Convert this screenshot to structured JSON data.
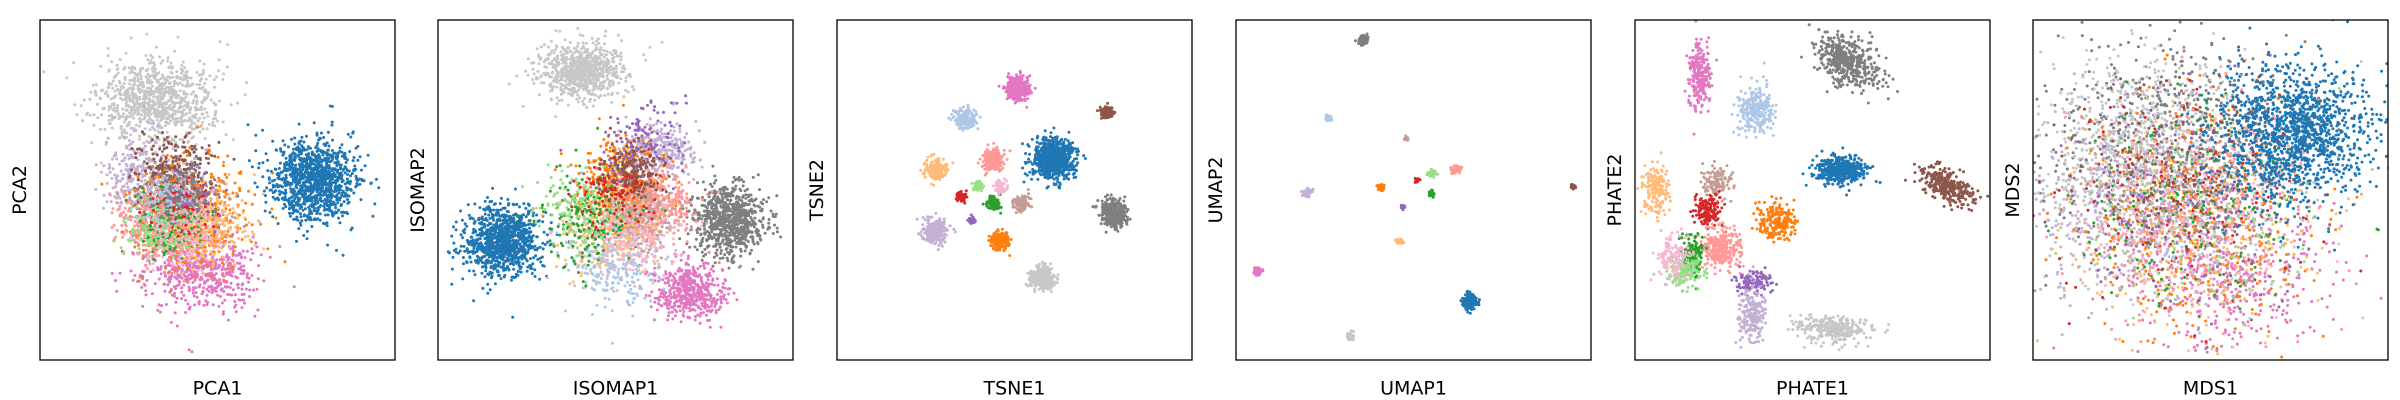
{
  "palette": {
    "blue": "#1f77b4",
    "light_blue": "#aec7e8",
    "orange": "#ff7f0e",
    "light_orange": "#ffbb78",
    "green": "#2ca02c",
    "light_green": "#98df8a",
    "red": "#d62728",
    "pink": "#ff9896",
    "purple": "#9467bd",
    "lavender": "#c5b0d5",
    "brown": "#8c564b",
    "tan": "#c49c94",
    "magenta": "#e377c2",
    "light_magenta": "#f7b6d2",
    "gray": "#7f7f7f",
    "light_gray": "#c7c7c7"
  },
  "chart_data": [
    {
      "type": "scatter",
      "xlabel": "PCA1",
      "ylabel": "PCA2",
      "xlim": [
        0,
        100
      ],
      "ylim": [
        0,
        100
      ],
      "ticks": "none",
      "grid": false,
      "legend": "none",
      "clusters": [
        {
          "color": "light_gray",
          "x": 33,
          "y": 76,
          "sx": 8,
          "sy": 6,
          "n": 900
        },
        {
          "color": "lavender",
          "x": 28,
          "y": 55,
          "sx": 5,
          "sy": 7,
          "n": 300
        },
        {
          "color": "magenta",
          "x": 45,
          "y": 27,
          "sx": 8,
          "sy": 6,
          "n": 600
        },
        {
          "color": "brown",
          "x": 38,
          "y": 53,
          "sx": 5,
          "sy": 6,
          "n": 400
        },
        {
          "color": "orange",
          "x": 42,
          "y": 42,
          "sx": 8,
          "sy": 7,
          "n": 600
        },
        {
          "color": "tan",
          "x": 38,
          "y": 44,
          "sx": 6,
          "sy": 5,
          "n": 300
        },
        {
          "color": "pink",
          "x": 34,
          "y": 40,
          "sx": 6,
          "sy": 6,
          "n": 300
        },
        {
          "color": "light_orange",
          "x": 46,
          "y": 40,
          "sx": 6,
          "sy": 6,
          "n": 300
        },
        {
          "color": "green",
          "x": 37,
          "y": 40,
          "sx": 5,
          "sy": 5,
          "n": 150
        },
        {
          "color": "light_green",
          "x": 33,
          "y": 38,
          "sx": 5,
          "sy": 4,
          "n": 120
        },
        {
          "color": "red",
          "x": 40,
          "y": 46,
          "sx": 4,
          "sy": 4,
          "n": 100
        },
        {
          "color": "purple",
          "x": 43,
          "y": 48,
          "sx": 4,
          "sy": 4,
          "n": 80
        },
        {
          "color": "light_blue",
          "x": 36,
          "y": 48,
          "sx": 5,
          "sy": 4,
          "n": 120
        },
        {
          "color": "light_magenta",
          "x": 40,
          "y": 36,
          "sx": 5,
          "sy": 5,
          "n": 120
        },
        {
          "color": "gray",
          "x": 40,
          "y": 50,
          "sx": 6,
          "sy": 5,
          "n": 100
        },
        {
          "color": "blue",
          "x": 77,
          "y": 53,
          "sx": 6,
          "sy": 6,
          "n": 1100
        }
      ]
    },
    {
      "type": "scatter",
      "xlabel": "ISOMAP1",
      "ylabel": "ISOMAP2",
      "xlim": [
        0,
        100
      ],
      "ylim": [
        0,
        100
      ],
      "ticks": "none",
      "grid": false,
      "legend": "none",
      "clusters": [
        {
          "color": "light_gray",
          "x": 40,
          "y": 85,
          "sx": 6,
          "sy": 4,
          "n": 800
        },
        {
          "color": "blue",
          "x": 18,
          "y": 35,
          "sx": 5,
          "sy": 5,
          "n": 1000
        },
        {
          "color": "gray",
          "x": 82,
          "y": 41,
          "sx": 5,
          "sy": 5,
          "n": 800
        },
        {
          "color": "magenta",
          "x": 71,
          "y": 20,
          "sx": 5,
          "sy": 4,
          "n": 500
        },
        {
          "color": "lavender",
          "x": 62,
          "y": 62,
          "sx": 5,
          "sy": 4,
          "n": 300
        },
        {
          "color": "orange",
          "x": 52,
          "y": 52,
          "sx": 6,
          "sy": 6,
          "n": 500
        },
        {
          "color": "pink",
          "x": 60,
          "y": 45,
          "sx": 6,
          "sy": 5,
          "n": 400
        },
        {
          "color": "tan",
          "x": 56,
          "y": 42,
          "sx": 5,
          "sy": 5,
          "n": 300
        },
        {
          "color": "light_orange",
          "x": 48,
          "y": 38,
          "sx": 7,
          "sy": 7,
          "n": 300
        },
        {
          "color": "light_blue",
          "x": 50,
          "y": 28,
          "sx": 7,
          "sy": 6,
          "n": 250
        },
        {
          "color": "green",
          "x": 42,
          "y": 42,
          "sx": 7,
          "sy": 7,
          "n": 200
        },
        {
          "color": "light_green",
          "x": 40,
          "y": 45,
          "sx": 6,
          "sy": 6,
          "n": 150
        },
        {
          "color": "brown",
          "x": 55,
          "y": 55,
          "sx": 4,
          "sy": 4,
          "n": 200
        },
        {
          "color": "purple",
          "x": 58,
          "y": 65,
          "sx": 6,
          "sy": 6,
          "n": 120
        },
        {
          "color": "red",
          "x": 50,
          "y": 48,
          "sx": 5,
          "sy": 5,
          "n": 100
        },
        {
          "color": "light_magenta",
          "x": 56,
          "y": 35,
          "sx": 6,
          "sy": 5,
          "n": 150
        }
      ]
    },
    {
      "type": "scatter",
      "xlabel": "TSNE1",
      "ylabel": "TSNE2",
      "xlim": [
        0,
        100
      ],
      "ylim": [
        0,
        100
      ],
      "ticks": "none",
      "grid": false,
      "legend": "none",
      "clusters": [
        {
          "color": "magenta",
          "x": 51,
          "y": 80,
          "sx": 1.7,
          "sy": 1.8,
          "n": 320
        },
        {
          "color": "light_blue",
          "x": 36,
          "y": 71,
          "sx": 1.5,
          "sy": 1.5,
          "n": 180
        },
        {
          "color": "brown",
          "x": 76,
          "y": 73,
          "sx": 0.9,
          "sy": 0.9,
          "n": 120
        },
        {
          "color": "blue",
          "x": 61,
          "y": 59,
          "sx": 3,
          "sy": 3,
          "n": 800
        },
        {
          "color": "pink",
          "x": 44,
          "y": 59,
          "sx": 1.6,
          "sy": 1.6,
          "n": 220
        },
        {
          "color": "light_orange",
          "x": 28,
          "y": 56,
          "sx": 1.6,
          "sy": 1.6,
          "n": 200
        },
        {
          "color": "lavender",
          "x": 28,
          "y": 38,
          "sx": 1.8,
          "sy": 1.8,
          "n": 250
        },
        {
          "color": "gray",
          "x": 78,
          "y": 43,
          "sx": 2,
          "sy": 2,
          "n": 350
        },
        {
          "color": "tan",
          "x": 52,
          "y": 46,
          "sx": 1.1,
          "sy": 1.1,
          "n": 120
        },
        {
          "color": "green",
          "x": 44,
          "y": 46,
          "sx": 1,
          "sy": 1,
          "n": 100
        },
        {
          "color": "light_green",
          "x": 40,
          "y": 51,
          "sx": 0.7,
          "sy": 0.7,
          "n": 60
        },
        {
          "color": "red",
          "x": 35,
          "y": 48,
          "sx": 0.7,
          "sy": 0.7,
          "n": 60
        },
        {
          "color": "light_magenta",
          "x": 46,
          "y": 51,
          "sx": 0.9,
          "sy": 0.9,
          "n": 80
        },
        {
          "color": "purple",
          "x": 38,
          "y": 41,
          "sx": 0.5,
          "sy": 0.5,
          "n": 40
        },
        {
          "color": "orange",
          "x": 46,
          "y": 35,
          "sx": 1.3,
          "sy": 1.3,
          "n": 150
        },
        {
          "color": "light_gray",
          "x": 58,
          "y": 24,
          "sx": 1.7,
          "sy": 1.7,
          "n": 260
        }
      ]
    },
    {
      "type": "scatter",
      "xlabel": "UMAP1",
      "ylabel": "UMAP2",
      "xlim": [
        0,
        100
      ],
      "ylim": [
        0,
        100
      ],
      "ticks": "none",
      "grid": false,
      "legend": "none",
      "clusters": [
        {
          "color": "gray",
          "x": 36,
          "y": 94,
          "sx": 0.7,
          "sy": 0.7,
          "n": 100
        },
        {
          "color": "light_blue",
          "x": 26,
          "y": 71,
          "sx": 0.45,
          "sy": 0.45,
          "n": 40
        },
        {
          "color": "tan",
          "x": 48,
          "y": 65,
          "sx": 0.3,
          "sy": 0.3,
          "n": 20
        },
        {
          "color": "pink",
          "x": 62,
          "y": 56,
          "sx": 0.6,
          "sy": 0.6,
          "n": 50
        },
        {
          "color": "light_green",
          "x": 55,
          "y": 55,
          "sx": 0.55,
          "sy": 0.45,
          "n": 40
        },
        {
          "color": "red",
          "x": 51,
          "y": 53,
          "sx": 0.3,
          "sy": 0.3,
          "n": 20
        },
        {
          "color": "green",
          "x": 55,
          "y": 49,
          "sx": 0.45,
          "sy": 0.45,
          "n": 30
        },
        {
          "color": "orange",
          "x": 41,
          "y": 51,
          "sx": 0.5,
          "sy": 0.5,
          "n": 30
        },
        {
          "color": "purple",
          "x": 47,
          "y": 45,
          "sx": 0.3,
          "sy": 0.3,
          "n": 15
        },
        {
          "color": "lavender",
          "x": 20,
          "y": 49,
          "sx": 0.65,
          "sy": 0.65,
          "n": 50
        },
        {
          "color": "light_orange",
          "x": 46,
          "y": 35,
          "sx": 0.5,
          "sy": 0.5,
          "n": 40
        },
        {
          "color": "brown",
          "x": 95,
          "y": 51,
          "sx": 0.35,
          "sy": 0.35,
          "n": 20
        },
        {
          "color": "magenta",
          "x": 6,
          "y": 26,
          "sx": 0.6,
          "sy": 0.6,
          "n": 60
        },
        {
          "color": "blue",
          "x": 66,
          "y": 17,
          "sx": 1,
          "sy": 1,
          "n": 260
        },
        {
          "color": "light_gray",
          "x": 32,
          "y": 7,
          "sx": 0.6,
          "sy": 0.6,
          "n": 50
        }
      ]
    },
    {
      "type": "scatter",
      "xlabel": "PHATE1",
      "ylabel": "PHATE2",
      "xlim": [
        0,
        100
      ],
      "ylim": [
        0,
        100
      ],
      "ticks": "none",
      "grid": false,
      "legend": "none",
      "clusters": [
        {
          "color": "magenta",
          "x": 18,
          "y": 84,
          "sx": 1.6,
          "sy": 5,
          "n": 250
        },
        {
          "color": "gray",
          "x": 60,
          "y": 88,
          "sx": 5,
          "sy": 3.5,
          "rot": -35,
          "n": 450
        },
        {
          "color": "light_blue",
          "x": 34,
          "y": 74,
          "sx": 2.5,
          "sy": 3.5,
          "n": 250
        },
        {
          "color": "blue",
          "x": 58,
          "y": 56,
          "sx": 3.5,
          "sy": 2,
          "n": 450
        },
        {
          "color": "brown",
          "x": 88,
          "y": 51,
          "sx": 4.5,
          "sy": 2,
          "rot": -30,
          "n": 300
        },
        {
          "color": "light_orange",
          "x": 6,
          "y": 50,
          "sx": 2,
          "sy": 3.5,
          "n": 180
        },
        {
          "color": "tan",
          "x": 23,
          "y": 52,
          "sx": 2,
          "sy": 2.5,
          "n": 120
        },
        {
          "color": "red",
          "x": 20,
          "y": 44,
          "sx": 2,
          "sy": 2.5,
          "n": 150
        },
        {
          "color": "orange",
          "x": 40,
          "y": 41,
          "sx": 2.5,
          "sy": 2.5,
          "n": 220
        },
        {
          "color": "pink",
          "x": 24,
          "y": 33,
          "sx": 3,
          "sy": 3,
          "n": 300
        },
        {
          "color": "green",
          "x": 16,
          "y": 31,
          "sx": 1.5,
          "sy": 3,
          "n": 150
        },
        {
          "color": "light_green",
          "x": 14,
          "y": 26,
          "sx": 2.5,
          "sy": 2.5,
          "n": 150
        },
        {
          "color": "light_magenta",
          "x": 11,
          "y": 30,
          "sx": 2.5,
          "sy": 3.5,
          "n": 130
        },
        {
          "color": "purple",
          "x": 33,
          "y": 23,
          "sx": 2.5,
          "sy": 2,
          "n": 120
        },
        {
          "color": "lavender",
          "x": 33,
          "y": 13,
          "sx": 2,
          "sy": 4,
          "n": 200
        },
        {
          "color": "light_gray",
          "x": 56,
          "y": 9,
          "sx": 5,
          "sy": 2,
          "n": 300
        }
      ]
    },
    {
      "type": "scatter",
      "xlabel": "MDS1",
      "ylabel": "MDS2",
      "xlim": [
        0,
        100
      ],
      "ylim": [
        0,
        100
      ],
      "ticks": "none",
      "grid": false,
      "legend": "none",
      "clusters": [
        {
          "color": "gray",
          "x": 38,
          "y": 65,
          "sx": 17,
          "sy": 16,
          "n": 700
        },
        {
          "color": "light_gray",
          "x": 30,
          "y": 60,
          "sx": 15,
          "sy": 16,
          "n": 700
        },
        {
          "color": "lavender",
          "x": 25,
          "y": 45,
          "sx": 15,
          "sy": 15,
          "n": 500
        },
        {
          "color": "magenta",
          "x": 55,
          "y": 25,
          "sx": 14,
          "sy": 11,
          "n": 400
        },
        {
          "color": "orange",
          "x": 45,
          "y": 40,
          "sx": 17,
          "sy": 17,
          "n": 400
        },
        {
          "color": "pink",
          "x": 50,
          "y": 45,
          "sx": 17,
          "sy": 16,
          "n": 300
        },
        {
          "color": "light_orange",
          "x": 45,
          "y": 35,
          "sx": 17,
          "sy": 16,
          "n": 300
        },
        {
          "color": "green",
          "x": 45,
          "y": 45,
          "sx": 17,
          "sy": 16,
          "n": 200
        },
        {
          "color": "light_green",
          "x": 45,
          "y": 45,
          "sx": 17,
          "sy": 16,
          "n": 150
        },
        {
          "color": "red",
          "x": 45,
          "y": 50,
          "sx": 17,
          "sy": 16,
          "n": 150
        },
        {
          "color": "brown",
          "x": 40,
          "y": 55,
          "sx": 16,
          "sy": 15,
          "n": 200
        },
        {
          "color": "tan",
          "x": 45,
          "y": 45,
          "sx": 17,
          "sy": 16,
          "n": 150
        },
        {
          "color": "light_blue",
          "x": 45,
          "y": 50,
          "sx": 17,
          "sy": 16,
          "n": 150
        },
        {
          "color": "purple",
          "x": 45,
          "y": 45,
          "sx": 17,
          "sy": 16,
          "n": 150
        },
        {
          "color": "light_magenta",
          "x": 45,
          "y": 40,
          "sx": 17,
          "sy": 16,
          "n": 150
        },
        {
          "color": "blue",
          "x": 73,
          "y": 67,
          "sx": 11,
          "sy": 10,
          "n": 1400
        }
      ]
    }
  ]
}
